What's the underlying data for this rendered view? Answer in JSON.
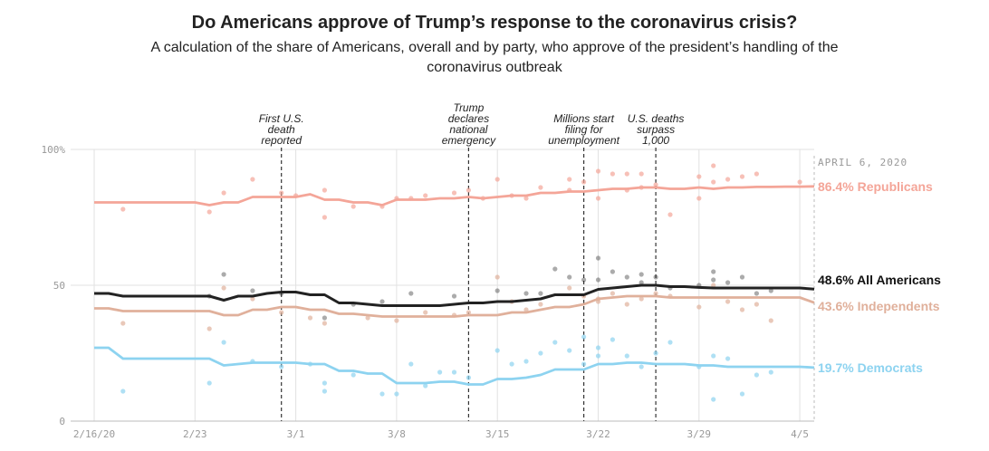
{
  "header": {
    "title": "Do Americans approve of Trump’s response to the coronavirus crisis?",
    "subtitle": "A calculation of the share of Americans, overall and by party, who approve of the president’s handling of the coronavirus outbreak"
  },
  "chart_data": {
    "type": "line",
    "title": "Do Americans approve of Trump’s response to the coronavirus crisis?",
    "xlabel": "",
    "ylabel": "",
    "ylim": [
      0,
      100
    ],
    "y_ticks": [
      {
        "value": 0,
        "label": "0"
      },
      {
        "value": 50,
        "label": "50"
      },
      {
        "value": 100,
        "label": "100%"
      }
    ],
    "x_range": [
      0,
      50
    ],
    "x_ticks": [
      {
        "day": 0,
        "label": "2/16/20"
      },
      {
        "day": 7,
        "label": "2/23"
      },
      {
        "day": 14,
        "label": "3/1"
      },
      {
        "day": 21,
        "label": "3/8"
      },
      {
        "day": 28,
        "label": "3/15"
      },
      {
        "day": 35,
        "label": "3/22"
      },
      {
        "day": 42,
        "label": "3/29"
      },
      {
        "day": 49,
        "label": "4/5"
      }
    ],
    "events": [
      {
        "day": 13,
        "lines": [
          "First U.S.",
          "death",
          "reported"
        ]
      },
      {
        "day": 26,
        "lines": [
          "Trump",
          "declares",
          "national",
          "emergency"
        ]
      },
      {
        "day": 34,
        "lines": [
          "Millions start",
          "filing for",
          "unemployment"
        ]
      },
      {
        "day": 39,
        "lines": [
          "U.S. deaths",
          "surpass",
          "1,000"
        ]
      }
    ],
    "date_label": "APRIL 6, 2020",
    "series": [
      {
        "name": "Republicans",
        "label": "86.4% Republicans",
        "color": "#f4a598",
        "latest": 86.4,
        "x": [
          0,
          6,
          7,
          8,
          9,
          10,
          11,
          12,
          13,
          14,
          15,
          16,
          17,
          18,
          19,
          20,
          21,
          22,
          23,
          24,
          25,
          26,
          27,
          28,
          29,
          30,
          31,
          32,
          33,
          34,
          35,
          36,
          37,
          38,
          39,
          40,
          41,
          42,
          43,
          44,
          45,
          46,
          47,
          48,
          49,
          50
        ],
        "values": [
          80.5,
          80.5,
          80.5,
          79.5,
          80.5,
          80.5,
          82.5,
          82.5,
          82.5,
          82.5,
          83.5,
          81.5,
          81.5,
          80.5,
          80.5,
          79.5,
          81.5,
          81.5,
          81.5,
          82,
          82,
          82.5,
          82,
          82.5,
          83,
          83,
          84,
          84,
          84.5,
          84.5,
          85,
          85.5,
          85.5,
          86,
          86,
          85.5,
          85.5,
          86,
          85.5,
          86,
          86,
          86.2,
          86.2,
          86.3,
          86.3,
          86.4
        ],
        "points": [
          [
            2,
            78
          ],
          [
            8,
            77
          ],
          [
            9,
            84
          ],
          [
            11,
            89
          ],
          [
            13,
            84
          ],
          [
            14,
            83
          ],
          [
            16,
            85
          ],
          [
            16,
            75
          ],
          [
            18,
            79
          ],
          [
            20,
            79
          ],
          [
            21,
            82
          ],
          [
            22,
            82
          ],
          [
            23,
            83
          ],
          [
            25,
            84
          ],
          [
            26,
            85
          ],
          [
            27,
            82
          ],
          [
            28,
            89
          ],
          [
            29,
            83
          ],
          [
            30,
            82
          ],
          [
            31,
            86
          ],
          [
            33,
            89
          ],
          [
            33,
            85
          ],
          [
            34,
            88
          ],
          [
            35,
            92
          ],
          [
            35,
            82
          ],
          [
            36,
            91
          ],
          [
            37,
            91
          ],
          [
            37,
            85
          ],
          [
            38,
            86
          ],
          [
            38,
            91
          ],
          [
            39,
            87
          ],
          [
            40,
            76
          ],
          [
            42,
            90
          ],
          [
            42,
            82
          ],
          [
            43,
            94
          ],
          [
            43,
            88
          ],
          [
            44,
            89
          ],
          [
            45,
            90
          ],
          [
            46,
            91
          ],
          [
            49,
            88
          ]
        ]
      },
      {
        "name": "All Americans",
        "label": "48.6% All Americans",
        "color": "#222222",
        "latest": 48.6,
        "x": [
          0,
          1,
          2,
          3,
          6,
          7,
          8,
          9,
          10,
          11,
          12,
          13,
          14,
          15,
          16,
          17,
          18,
          19,
          20,
          21,
          22,
          23,
          24,
          25,
          26,
          27,
          28,
          29,
          30,
          31,
          32,
          33,
          34,
          35,
          36,
          37,
          38,
          39,
          40,
          41,
          42,
          43,
          44,
          45,
          46,
          47,
          48,
          49,
          50
        ],
        "values": [
          47,
          47,
          46,
          46,
          46,
          46,
          46,
          44.5,
          46,
          46,
          47,
          47.5,
          47.5,
          46.5,
          46.5,
          43.5,
          43.5,
          43,
          42.5,
          42.5,
          42.5,
          42.5,
          42.5,
          43,
          43.5,
          43.5,
          44,
          44,
          44.5,
          45,
          46.5,
          46.5,
          46.5,
          48.5,
          49,
          49.5,
          50,
          50,
          49.5,
          49.5,
          49.2,
          49,
          49,
          49,
          49,
          49,
          49,
          49,
          48.6
        ],
        "points": [
          [
            8,
            46
          ],
          [
            9,
            54
          ],
          [
            11,
            48
          ],
          [
            13,
            47
          ],
          [
            16,
            38
          ],
          [
            18,
            43
          ],
          [
            20,
            44
          ],
          [
            22,
            47
          ],
          [
            25,
            46
          ],
          [
            28,
            48
          ],
          [
            30,
            47
          ],
          [
            31,
            47
          ],
          [
            32,
            56
          ],
          [
            33,
            53
          ],
          [
            34,
            52
          ],
          [
            35,
            52
          ],
          [
            35,
            60
          ],
          [
            36,
            55
          ],
          [
            37,
            53
          ],
          [
            38,
            51
          ],
          [
            38,
            54
          ],
          [
            39,
            53
          ],
          [
            40,
            49
          ],
          [
            42,
            50
          ],
          [
            43,
            55
          ],
          [
            43,
            52
          ],
          [
            44,
            51
          ],
          [
            45,
            53
          ],
          [
            46,
            47
          ],
          [
            47,
            48
          ]
        ]
      },
      {
        "name": "Independents",
        "label": "43.6% Independents",
        "color": "#e0b09b",
        "latest": 43.6,
        "x": [
          0,
          1,
          2,
          3,
          6,
          7,
          8,
          9,
          10,
          11,
          12,
          13,
          14,
          15,
          16,
          17,
          18,
          19,
          20,
          21,
          22,
          23,
          24,
          25,
          26,
          27,
          28,
          29,
          30,
          31,
          32,
          33,
          34,
          35,
          36,
          37,
          38,
          39,
          40,
          41,
          42,
          43,
          44,
          45,
          46,
          47,
          48,
          49,
          50
        ],
        "values": [
          41.5,
          41.5,
          40.5,
          40.5,
          40.5,
          40.5,
          40.5,
          39,
          39,
          41,
          41,
          42,
          42,
          41,
          41,
          39.5,
          39.5,
          39,
          38.5,
          38.5,
          38.5,
          38.5,
          38.5,
          38.5,
          39,
          39,
          39,
          40,
          40,
          41,
          42,
          42,
          43,
          45,
          45.5,
          46,
          46,
          46,
          45.5,
          45.5,
          45.5,
          45.5,
          45.5,
          45.5,
          45.5,
          45.5,
          45.5,
          45.5,
          43.6
        ],
        "points": [
          [
            2,
            36
          ],
          [
            8,
            34
          ],
          [
            9,
            49
          ],
          [
            11,
            45
          ],
          [
            13,
            40
          ],
          [
            15,
            38
          ],
          [
            16,
            36
          ],
          [
            19,
            38
          ],
          [
            21,
            37
          ],
          [
            23,
            40
          ],
          [
            25,
            39
          ],
          [
            26,
            40
          ],
          [
            28,
            53
          ],
          [
            29,
            44
          ],
          [
            30,
            41
          ],
          [
            31,
            43
          ],
          [
            33,
            49
          ],
          [
            34,
            46
          ],
          [
            35,
            45
          ],
          [
            35,
            44
          ],
          [
            36,
            47
          ],
          [
            37,
            43
          ],
          [
            38,
            45
          ],
          [
            39,
            47
          ],
          [
            40,
            46
          ],
          [
            42,
            42
          ],
          [
            43,
            50
          ],
          [
            44,
            44
          ],
          [
            45,
            41
          ],
          [
            46,
            43
          ],
          [
            47,
            37
          ]
        ]
      },
      {
        "name": "Democrats",
        "label": "19.7% Democrats",
        "color": "#8dd3f0",
        "latest": 19.7,
        "x": [
          0,
          1,
          2,
          3,
          6,
          7,
          8,
          9,
          10,
          11,
          12,
          13,
          14,
          15,
          16,
          17,
          18,
          19,
          20,
          21,
          22,
          23,
          24,
          25,
          26,
          27,
          28,
          29,
          30,
          31,
          32,
          33,
          34,
          35,
          36,
          37,
          38,
          39,
          40,
          41,
          42,
          43,
          44,
          45,
          46,
          47,
          48,
          49,
          50
        ],
        "values": [
          27,
          27,
          23,
          23,
          23,
          23,
          23,
          20.5,
          21,
          21.5,
          21.5,
          21.5,
          21.5,
          21,
          21,
          18.5,
          18.5,
          17.5,
          17.5,
          14,
          14,
          14,
          14.5,
          14.5,
          13.5,
          13.5,
          15.5,
          15.5,
          16,
          17,
          19,
          19,
          19,
          21,
          21,
          21.5,
          21.5,
          21,
          21,
          21,
          20.5,
          20.5,
          20,
          20,
          20,
          20,
          20,
          20,
          19.7
        ],
        "points": [
          [
            2,
            11
          ],
          [
            8,
            14
          ],
          [
            9,
            29
          ],
          [
            11,
            22
          ],
          [
            13,
            20
          ],
          [
            15,
            21
          ],
          [
            16,
            11
          ],
          [
            16,
            14
          ],
          [
            18,
            17
          ],
          [
            20,
            10
          ],
          [
            21,
            10
          ],
          [
            22,
            21
          ],
          [
            23,
            13
          ],
          [
            24,
            18
          ],
          [
            25,
            18
          ],
          [
            26,
            16
          ],
          [
            28,
            26
          ],
          [
            29,
            21
          ],
          [
            30,
            22
          ],
          [
            31,
            25
          ],
          [
            32,
            29
          ],
          [
            33,
            26
          ],
          [
            34,
            21
          ],
          [
            34,
            31
          ],
          [
            35,
            27
          ],
          [
            35,
            24
          ],
          [
            36,
            30
          ],
          [
            37,
            24
          ],
          [
            38,
            20
          ],
          [
            39,
            25
          ],
          [
            40,
            29
          ],
          [
            42,
            20
          ],
          [
            43,
            24
          ],
          [
            43,
            8
          ],
          [
            44,
            23
          ],
          [
            45,
            10
          ],
          [
            46,
            17
          ],
          [
            47,
            18
          ]
        ]
      }
    ]
  }
}
